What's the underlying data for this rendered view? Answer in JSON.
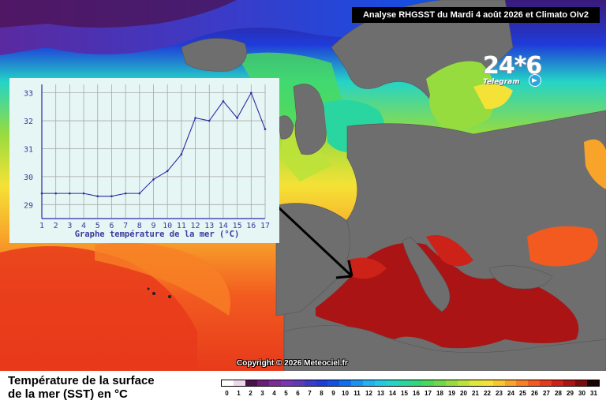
{
  "header": {
    "title": "Analyse RHGSST  du Mardi 4 août 2026 et Climato OIv2"
  },
  "logo": {
    "big": "24*6",
    "small": "Telegram"
  },
  "copyright": "Copyright © 2026 Meteociel.fr",
  "legend": {
    "title_line1": "Température de la surface",
    "title_line2": "de la mer (SST) en °C",
    "labels": [
      "0",
      "1",
      "2",
      "3",
      "4",
      "5",
      "6",
      "7",
      "8",
      "9",
      "10",
      "11",
      "12",
      "13",
      "14",
      "15",
      "16",
      "17",
      "18",
      "19",
      "20",
      "21",
      "22",
      "23",
      "24",
      "25",
      "26",
      "27",
      "28",
      "29",
      "30",
      "31"
    ],
    "colors": [
      "#ffffff",
      "#ecd7ec",
      "#4b0f4b",
      "#6a1c7a",
      "#7c2a96",
      "#7a35b2",
      "#5d3bb8",
      "#3b3bc7",
      "#1f3bd9",
      "#1250e6",
      "#0f6ff0",
      "#1a93f0",
      "#22b2ee",
      "#25c8e4",
      "#24d4c6",
      "#2ad6a0",
      "#32d77b",
      "#48d95b",
      "#6ed84a",
      "#96dc3e",
      "#bce23a",
      "#dfe838",
      "#f5e236",
      "#f8c62f",
      "#f8a42a",
      "#f77f25",
      "#f25a20",
      "#e73a1b",
      "#cc2218",
      "#aa1414",
      "#7d0c0c",
      "#1a0404"
    ]
  },
  "inset": {
    "xlabel": "Graphe température de la mer (°C)"
  },
  "chart_data": {
    "type": "line",
    "title": "",
    "xlabel": "Graphe température de la mer (°C)",
    "ylabel": "",
    "x": [
      1,
      2,
      3,
      4,
      5,
      6,
      7,
      8,
      9,
      10,
      11,
      12,
      13,
      14,
      15,
      16,
      17
    ],
    "series": [
      {
        "values": [
          29.4,
          29.4,
          29.4,
          29.4,
          29.3,
          29.3,
          29.4,
          29.4,
          29.9,
          30.2,
          30.8,
          32.1,
          32.0,
          32.7,
          32.1,
          33.0,
          31.7
        ]
      }
    ],
    "xticks": [
      "1",
      "2",
      "3",
      "4",
      "5",
      "6",
      "7",
      "8",
      "9",
      "10",
      "11",
      "12",
      "13",
      "14",
      "15",
      "16",
      "17"
    ],
    "yticks": [
      "29",
      "30",
      "31",
      "32",
      "33"
    ],
    "xlim": [
      1,
      17
    ],
    "ylim": [
      28.5,
      33.3
    ],
    "grid": true,
    "colors": {
      "line": "#2a2aa8",
      "grid": "#a8a8a8",
      "bg": "#e5f6f4",
      "text": "#3a3aa0"
    }
  }
}
